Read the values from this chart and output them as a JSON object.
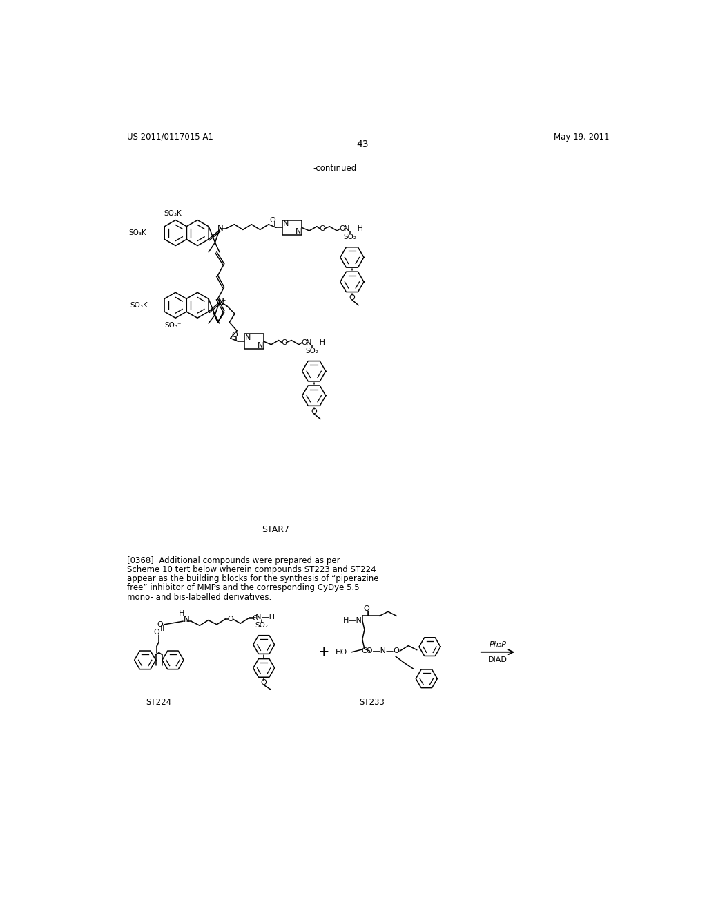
{
  "page_header_left": "US 2011/0117015 A1",
  "page_header_right": "May 19, 2011",
  "page_number": "43",
  "continued_label": "-continued",
  "background_color": "#ffffff",
  "text_color": "#000000",
  "star7_label": "STAR7",
  "st224_label": "ST224",
  "st233_label": "ST233",
  "paragraph_text": "[0368]  Additional compounds were prepared as per\nScheme 10 tert below wherein compounds ST223 and ST224\nappear as the building blocks for the synthesis of “piperazine\nfree” inhibitor of MMPs and the corresponding CyDye 5.5\nmono- and bis-labelled derivatives.",
  "reagent_above": "Ph₃P",
  "reagent_below": "DIAD"
}
